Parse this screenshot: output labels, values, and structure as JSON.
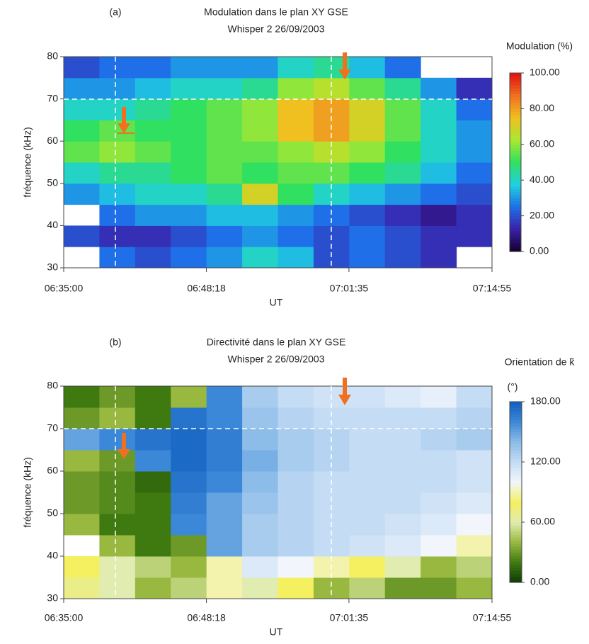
{
  "chart_data": [
    {
      "type": "heatmap",
      "panel_label": "(a)",
      "title": "Modulation dans le plan XY GSE",
      "subtitle": "Whisper 2  26/09/2003",
      "colorbar_title": "Modulation (%)",
      "xlabel": "UT",
      "ylabel": "fréquence (kHz)",
      "xlim": [
        "06:35:00",
        "07:14:55"
      ],
      "xticks": [
        "06:35:00",
        "06:48:18",
        "07:01:35",
        "07:14:55"
      ],
      "ylim": [
        30,
        80
      ],
      "yticks": [
        30,
        40,
        50,
        60,
        70,
        80
      ],
      "zlim": [
        0,
        100
      ],
      "zticks": [
        {
          "value": 0,
          "label": "0.00"
        },
        {
          "value": 20,
          "label": "20.00"
        },
        {
          "value": 40,
          "label": "40.00"
        },
        {
          "value": 60,
          "label": "60.00"
        },
        {
          "value": 80,
          "label": "80.00"
        },
        {
          "value": 100,
          "label": "100.00"
        }
      ],
      "colorscale": [
        "#14002a",
        "#3a1fa8",
        "#1f6fe8",
        "#20d0e0",
        "#30e060",
        "#a8e830",
        "#f0c020",
        "#f07020",
        "#e01010"
      ],
      "z": [
        [
          null,
          25,
          20,
          25,
          30,
          40,
          35,
          20,
          25,
          20,
          15,
          null
        ],
        [
          20,
          15,
          15,
          20,
          25,
          30,
          25,
          20,
          25,
          20,
          15,
          15
        ],
        [
          null,
          25,
          30,
          30,
          35,
          35,
          30,
          25,
          20,
          15,
          10,
          15
        ],
        [
          30,
          35,
          40,
          40,
          45,
          70,
          50,
          40,
          35,
          30,
          25,
          20
        ],
        [
          40,
          45,
          45,
          50,
          55,
          50,
          55,
          55,
          50,
          45,
          35,
          25
        ],
        [
          55,
          60,
          55,
          50,
          55,
          55,
          60,
          65,
          60,
          50,
          40,
          30
        ],
        [
          50,
          55,
          50,
          50,
          55,
          60,
          75,
          80,
          70,
          55,
          40,
          30
        ],
        [
          40,
          40,
          45,
          50,
          55,
          60,
          75,
          80,
          70,
          55,
          40,
          25
        ],
        [
          30,
          30,
          35,
          40,
          40,
          45,
          60,
          65,
          55,
          45,
          30,
          15
        ],
        [
          20,
          25,
          25,
          30,
          30,
          30,
          40,
          45,
          35,
          25,
          null,
          null
        ]
      ]
    },
    {
      "type": "heatmap",
      "panel_label": "(b)",
      "title": "Directivité dans le plan XY GSE",
      "subtitle": "Whisper 2  26/09/2003",
      "colorbar_title": "Orientation de k̃",
      "colorbar_unit": "(°)",
      "xlabel": "UT",
      "ylabel": "fréquence (kHz)",
      "xlim": [
        "06:35:00",
        "07:14:55"
      ],
      "xticks": [
        "06:35:00",
        "06:48:18",
        "07:01:35",
        "07:14:55"
      ],
      "ylim": [
        30,
        80
      ],
      "yticks": [
        30,
        40,
        50,
        60,
        70,
        80
      ],
      "zlim": [
        0,
        180
      ],
      "zticks": [
        {
          "value": 0,
          "label": "0.00"
        },
        {
          "value": 60,
          "label": "60.00"
        },
        {
          "value": 120,
          "label": "120.00"
        },
        {
          "value": 180,
          "label": "180.00"
        }
      ],
      "colorscale": [
        "#0f3a08",
        "#3f7a10",
        "#98b840",
        "#e0ecb0",
        "#f4f060",
        "#f2f6fc",
        "#c4dcf4",
        "#8cbce8",
        "#3c88d8",
        "#1060c0"
      ],
      "z": [
        [
          70,
          60,
          40,
          50,
          90,
          60,
          80,
          40,
          50,
          30,
          30,
          40
        ],
        [
          80,
          60,
          50,
          40,
          90,
          110,
          100,
          90,
          80,
          60,
          40,
          50
        ],
        [
          null,
          40,
          20,
          30,
          150,
          130,
          125,
          120,
          115,
          110,
          100,
          90
        ],
        [
          40,
          20,
          20,
          160,
          150,
          130,
          125,
          120,
          120,
          115,
          110,
          100
        ],
        [
          30,
          25,
          20,
          165,
          150,
          135,
          125,
          120,
          120,
          120,
          115,
          110
        ],
        [
          30,
          25,
          15,
          170,
          160,
          140,
          125,
          120,
          120,
          120,
          120,
          115
        ],
        [
          40,
          30,
          160,
          175,
          165,
          145,
          130,
          125,
          120,
          120,
          120,
          115
        ],
        [
          150,
          160,
          170,
          175,
          165,
          140,
          130,
          125,
          120,
          120,
          125,
          130
        ],
        [
          30,
          40,
          20,
          170,
          160,
          135,
          125,
          120,
          120,
          120,
          120,
          125
        ],
        [
          20,
          30,
          20,
          40,
          160,
          130,
          120,
          115,
          115,
          110,
          105,
          120
        ]
      ]
    }
  ]
}
